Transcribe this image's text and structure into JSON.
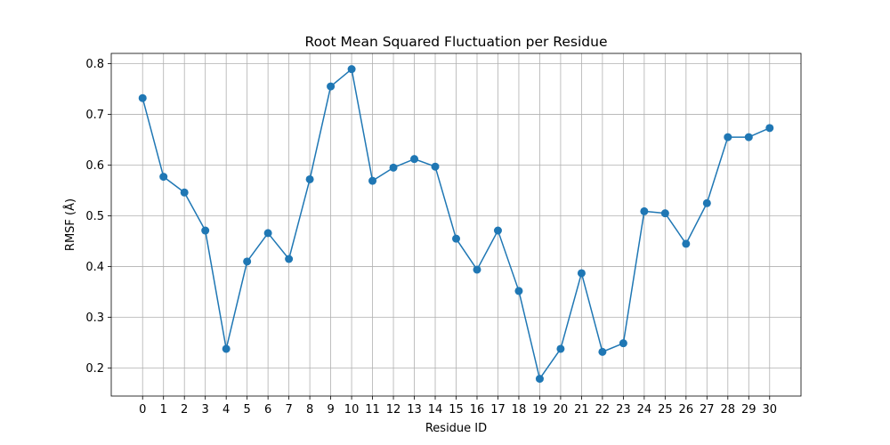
{
  "chart_data": {
    "type": "line",
    "title": "Root Mean Squared Fluctuation per Residue",
    "xlabel": "Residue ID",
    "ylabel": "RMSF (Å)",
    "xlim": [
      -1.5,
      31.5
    ],
    "ylim": [
      0.145,
      0.82
    ],
    "x_ticks": [
      "0",
      "1",
      "2",
      "3",
      "4",
      "5",
      "6",
      "7",
      "8",
      "9",
      "10",
      "11",
      "12",
      "13",
      "14",
      "15",
      "16",
      "17",
      "18",
      "19",
      "20",
      "21",
      "22",
      "23",
      "24",
      "25",
      "26",
      "27",
      "28",
      "29",
      "30"
    ],
    "y_ticks": [
      "0.2",
      "0.3",
      "0.4",
      "0.5",
      "0.6",
      "0.7",
      "0.8"
    ],
    "grid": true,
    "marker": "circle",
    "series": [
      {
        "name": "",
        "color": "#1f77b4",
        "x": [
          0,
          1,
          2,
          3,
          4,
          5,
          6,
          7,
          8,
          9,
          10,
          11,
          12,
          13,
          14,
          15,
          16,
          17,
          18,
          19,
          20,
          21,
          22,
          23,
          24,
          25,
          26,
          27,
          28,
          29,
          30
        ],
        "y": [
          0.732,
          0.577,
          0.546,
          0.471,
          0.238,
          0.41,
          0.466,
          0.415,
          0.572,
          0.755,
          0.789,
          0.569,
          0.595,
          0.612,
          0.597,
          0.455,
          0.394,
          0.471,
          0.352,
          0.179,
          0.238,
          0.387,
          0.232,
          0.249,
          0.509,
          0.505,
          0.445,
          0.525,
          0.655,
          0.655,
          0.673
        ]
      }
    ]
  }
}
